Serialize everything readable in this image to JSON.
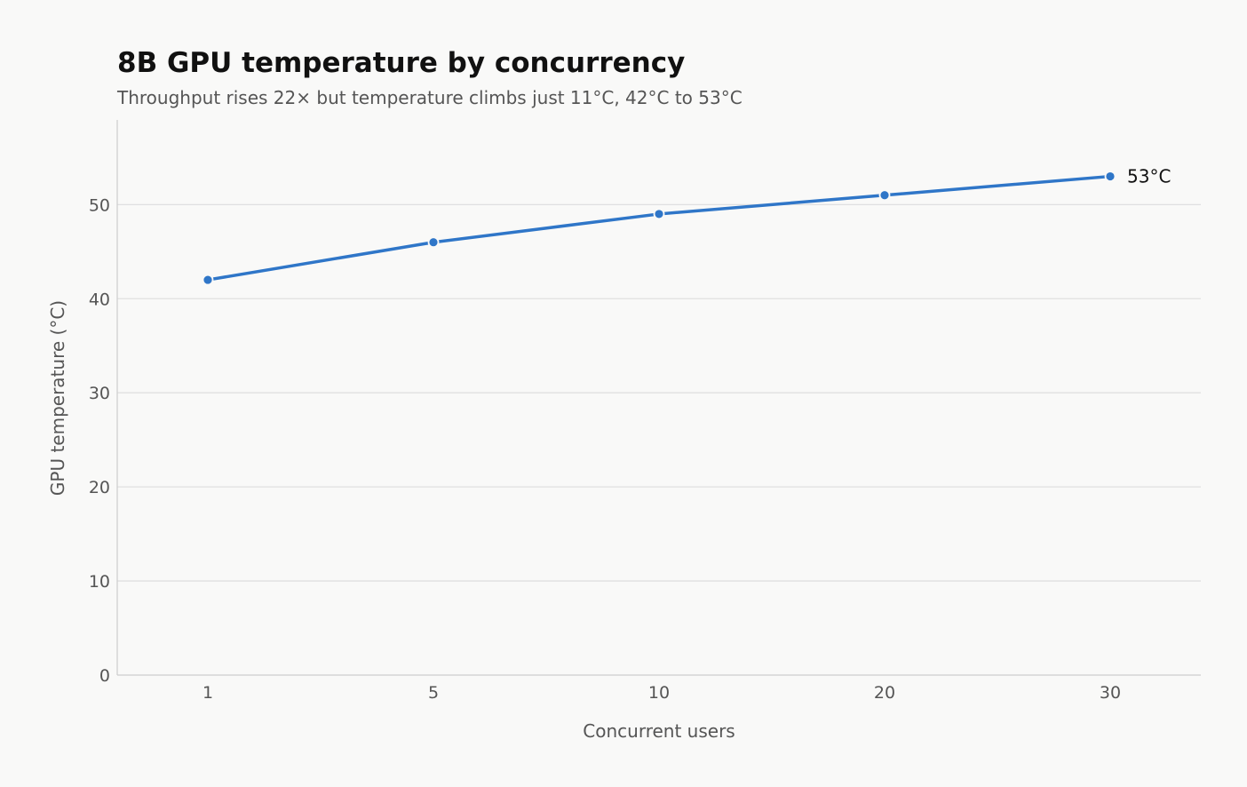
{
  "chart_data": {
    "type": "line",
    "title": "8B GPU temperature by concurrency",
    "subtitle": "Throughput rises 22× but temperature climbs just 11°C, 42°C to 53°C",
    "xlabel": "Concurrent users",
    "ylabel": "GPU temperature (°C)",
    "categories": [
      "1",
      "5",
      "10",
      "20",
      "30"
    ],
    "x_scale": "categorical",
    "series": [
      {
        "values": [
          42,
          46,
          49,
          51,
          53
        ],
        "color": "#2f76c8"
      }
    ],
    "end_label": "53°C",
    "ylim": [
      0,
      59
    ],
    "yticks": [
      0,
      10,
      20,
      30,
      40,
      50
    ],
    "grid": "horizontal",
    "legend": "none",
    "colors": {
      "line": "#2f76c8",
      "grid": "#e0e0e0",
      "background": "#f9f9f8"
    }
  }
}
